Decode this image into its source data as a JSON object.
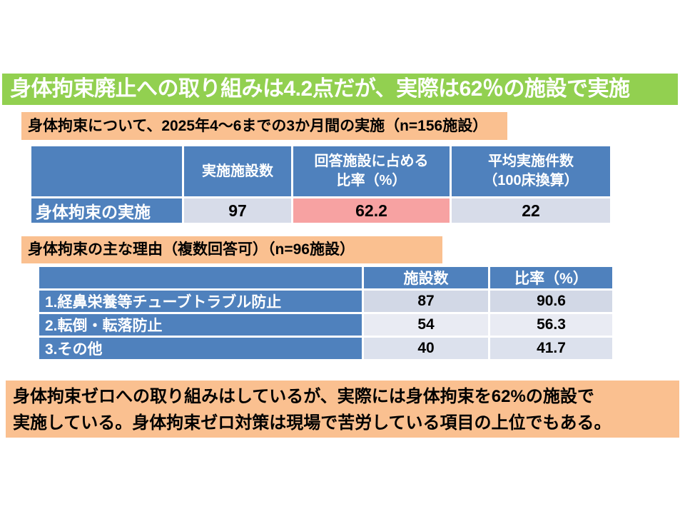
{
  "slide": {
    "title": "身体拘束廃止への取り組みは4.2点だが、実際は62％の施設で実施",
    "section1": {
      "label": "身体拘束について、2025年4～6までの3か月間の実施（n=156施設）"
    },
    "table1": {
      "headers": [
        "",
        "実施施設数",
        "回答施設に占める\n比率（%）",
        "平均実施件数\n（100床換算）"
      ],
      "row_label": "身体拘束の実施",
      "values": [
        "97",
        "62.2",
        "22"
      ]
    },
    "section2": {
      "label": "身体拘束の主な理由（複数回答可）（n=96施設）"
    },
    "table2": {
      "headers": [
        "",
        "施設数",
        "比率（%）"
      ],
      "rows": [
        {
          "label": "1.経鼻栄養等チューブトラブル防止",
          "count": "87",
          "pct": "90.6"
        },
        {
          "label": "2.転倒・転落防止",
          "count": "54",
          "pct": "56.3"
        },
        {
          "label": "3.その他",
          "count": "40",
          "pct": "41.7"
        }
      ]
    },
    "footer": {
      "line1": "身体拘束ゼロへの取り組みはしているが、実際には身体拘束を62%の施設で",
      "line2": "実施している。身体拘束ゼロ対策は現場で苦労している項目の上位でもある。"
    },
    "colors": {
      "title_bg": "#92D050",
      "label_bg": "#FAC090",
      "header_blue": "#4F81BD",
      "cell_lavender": "#D7DCE9",
      "cell_pink": "#F7A2A2",
      "band_dark": "#D2D8E6",
      "band_light": "#E9EBF3",
      "band_mid": "#DCE1ED",
      "text_white": "#FFFFFF",
      "text_black": "#000000"
    }
  }
}
